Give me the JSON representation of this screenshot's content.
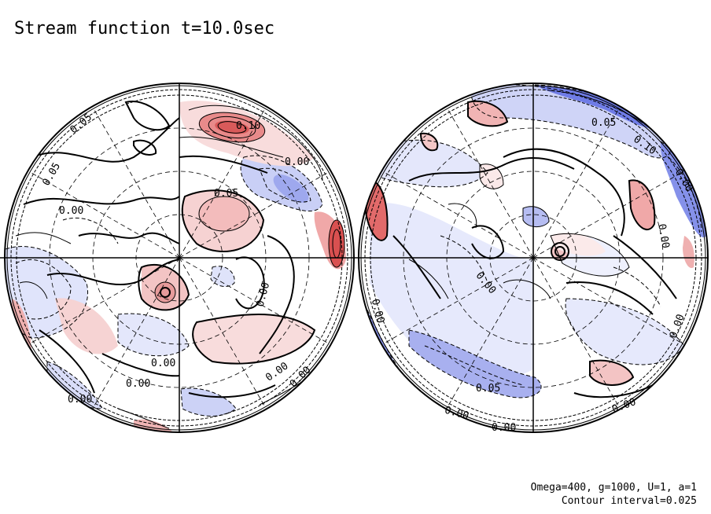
{
  "figure": {
    "title": "Stream function t=10.0sec",
    "parameters": "Omega=400, g=1000, U=1, a=1",
    "contour_interval": "Contour interval=0.025"
  },
  "colors": {
    "positive": "#e06060",
    "positive_light": "#f8dcdc",
    "negative": "#5060e0",
    "negative_light": "#e0e4fb",
    "line": "#000000"
  },
  "hemispheres": [
    {
      "name": "left",
      "contour_labels": [
        "0.05",
        "0.10",
        "0.00",
        "0.05",
        "0.00",
        "0.00",
        "0.00",
        "0.00",
        "0.00",
        "0.00",
        "0.05",
        "0.00"
      ]
    },
    {
      "name": "right",
      "contour_labels": [
        "0.05",
        "0.10",
        "0.00",
        "0.00",
        "0.00",
        "0.00",
        "0.00",
        "0.05",
        "0.00",
        "0.00",
        "0.00"
      ]
    }
  ]
}
